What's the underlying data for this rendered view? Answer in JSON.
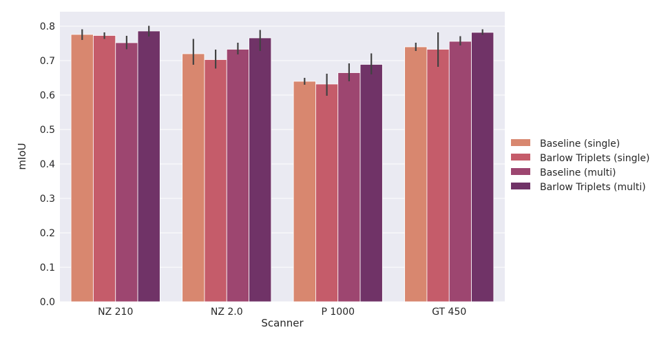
{
  "chart_data": {
    "type": "bar",
    "xlabel": "Scanner",
    "ylabel": "mIoU",
    "ylim": [
      0,
      0.82
    ],
    "yticks": [
      "0.0",
      "0.1",
      "0.2",
      "0.3",
      "0.4",
      "0.5",
      "0.6",
      "0.7",
      "0.8"
    ],
    "categories": [
      "NZ 210",
      "NZ 2.0",
      "P 1000",
      "GT 450"
    ],
    "grid": true,
    "legend_position": "right",
    "series": [
      {
        "name": "Baseline (single)",
        "color": "#d8876f",
        "values": [
          0.776,
          0.72,
          0.64,
          0.74
        ],
        "error_low": [
          0.76,
          0.688,
          0.63,
          0.728
        ],
        "error_high": [
          0.791,
          0.763,
          0.65,
          0.752
        ]
      },
      {
        "name": "Barlow Triplets (single)",
        "color": "#c55c6a",
        "values": [
          0.773,
          0.703,
          0.632,
          0.733
        ],
        "error_low": [
          0.763,
          0.677,
          0.598,
          0.682
        ],
        "error_high": [
          0.782,
          0.732,
          0.662,
          0.782
        ]
      },
      {
        "name": "Baseline (multi)",
        "color": "#9d4670",
        "values": [
          0.752,
          0.733,
          0.665,
          0.756
        ],
        "error_low": [
          0.733,
          0.718,
          0.64,
          0.744
        ],
        "error_high": [
          0.772,
          0.752,
          0.692,
          0.771
        ]
      },
      {
        "name": "Barlow Triplets (multi)",
        "color": "#703367",
        "values": [
          0.786,
          0.766,
          0.689,
          0.782
        ],
        "error_low": [
          0.77,
          0.728,
          0.66,
          0.775
        ],
        "error_high": [
          0.801,
          0.789,
          0.721,
          0.791
        ]
      }
    ]
  }
}
